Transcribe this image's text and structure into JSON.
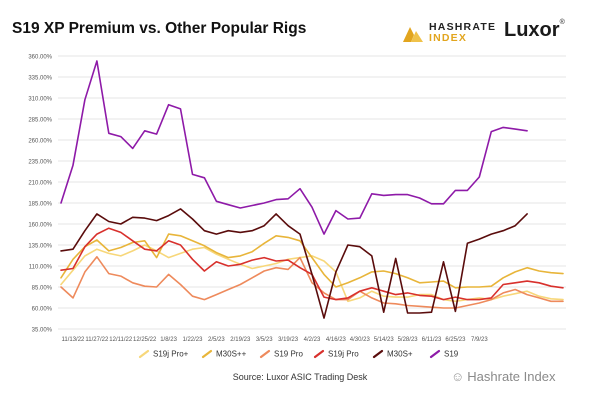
{
  "header": {
    "title": "S19 XP Premium vs. Other Popular Rigs",
    "brand_hashrate_line1": "HASHRATE",
    "brand_hashrate_line2": "INDEX",
    "brand_luxor": "Luxor",
    "brand_luxor_mark": "®"
  },
  "footer": {
    "source": "Source: Luxor ASIC Trading Desk",
    "watermark": "Hashrate Index"
  },
  "colors": {
    "accent_gold": "#e2a51e",
    "grid": "#e4e4e4"
  },
  "chart_data": {
    "type": "line",
    "title": "S19 XP Premium vs. Other Popular Rigs",
    "xlabel": "",
    "ylabel": "",
    "ylim": [
      35,
      360
    ],
    "yticks": [
      "35.00%",
      "60.00%",
      "85.00%",
      "110.00%",
      "135.00%",
      "160.00%",
      "185.00%",
      "210.00%",
      "235.00%",
      "260.00%",
      "285.00%",
      "310.00%",
      "335.00%",
      "360.00%"
    ],
    "ytick_values": [
      35,
      60,
      85,
      110,
      135,
      160,
      185,
      210,
      235,
      260,
      285,
      310,
      335,
      360
    ],
    "xticks": [
      "11/13/22",
      "11/27/22",
      "12/11/22",
      "12/25/22",
      "1/8/23",
      "1/22/23",
      "2/5/23",
      "2/19/23",
      "3/5/23",
      "3/19/23",
      "4/2/23",
      "4/16/23",
      "4/30/23",
      "5/14/23",
      "5/28/23",
      "6/11/23",
      "6/25/23",
      "7/9/23"
    ],
    "grid": "horizontal",
    "legend_position": "bottom",
    "series": [
      {
        "name": "S19j Pro+",
        "color": "#f7d77a",
        "values": [
          88,
          105,
          122,
          130,
          125,
          122,
          128,
          135,
          128,
          120,
          125,
          130,
          132,
          124,
          118,
          112,
          107,
          110,
          113,
          118,
          120,
          122,
          116,
          103,
          68,
          72,
          80,
          74,
          73,
          73,
          76,
          76,
          70,
          68,
          70,
          72,
          70,
          74,
          77,
          80,
          74,
          71,
          70
        ]
      },
      {
        "name": "M30S++",
        "color": "#e8b53a",
        "values": [
          96,
          118,
          133,
          141,
          128,
          132,
          138,
          140,
          120,
          148,
          146,
          140,
          134,
          126,
          120,
          122,
          127,
          137,
          146,
          144,
          140,
          120,
          100,
          85,
          90,
          96,
          103,
          104,
          101,
          96,
          90,
          91,
          92,
          84,
          85,
          85,
          86,
          96,
          103,
          108,
          104,
          102,
          101
        ]
      },
      {
        "name": "S19 Pro",
        "color": "#ee8a5c",
        "values": [
          85,
          72,
          103,
          121,
          101,
          98,
          90,
          86,
          85,
          100,
          88,
          74,
          70,
          76,
          82,
          88,
          96,
          104,
          108,
          106,
          120,
          90,
          78,
          70,
          70,
          80,
          72,
          66,
          65,
          63,
          62,
          61,
          60,
          60,
          63,
          66,
          70,
          78,
          82,
          76,
          72,
          68,
          68
        ]
      },
      {
        "name": "S19j Pro",
        "color": "#d8302c",
        "values": [
          105,
          107,
          133,
          148,
          155,
          150,
          140,
          130,
          128,
          140,
          135,
          118,
          104,
          115,
          110,
          112,
          117,
          120,
          116,
          117,
          108,
          100,
          73,
          70,
          72,
          80,
          84,
          80,
          76,
          78,
          75,
          74,
          70,
          73,
          70,
          70,
          72,
          88,
          90,
          92,
          90,
          86,
          84
        ]
      },
      {
        "name": "M30S+",
        "color": "#5a0c0c",
        "values": [
          128,
          130,
          152,
          172,
          163,
          160,
          168,
          167,
          164,
          170,
          178,
          166,
          152,
          148,
          152,
          150,
          152,
          158,
          172,
          158,
          148,
          100,
          48,
          103,
          135,
          133,
          122,
          55,
          119,
          54,
          54,
          55,
          115,
          56,
          137,
          142,
          148,
          152,
          158,
          172,
          null,
          null,
          null
        ]
      },
      {
        "name": "S19",
        "color": "#8e1aa8",
        "values": [
          185,
          230,
          308,
          354,
          268,
          264,
          250,
          271,
          267,
          302,
          297,
          219,
          215,
          187,
          183,
          179,
          182,
          185,
          189,
          190,
          202,
          180,
          148,
          176,
          166,
          167,
          196,
          194,
          195,
          195,
          191,
          184,
          184,
          200,
          200,
          216,
          270,
          275,
          273,
          271,
          null,
          null,
          null
        ]
      }
    ]
  }
}
